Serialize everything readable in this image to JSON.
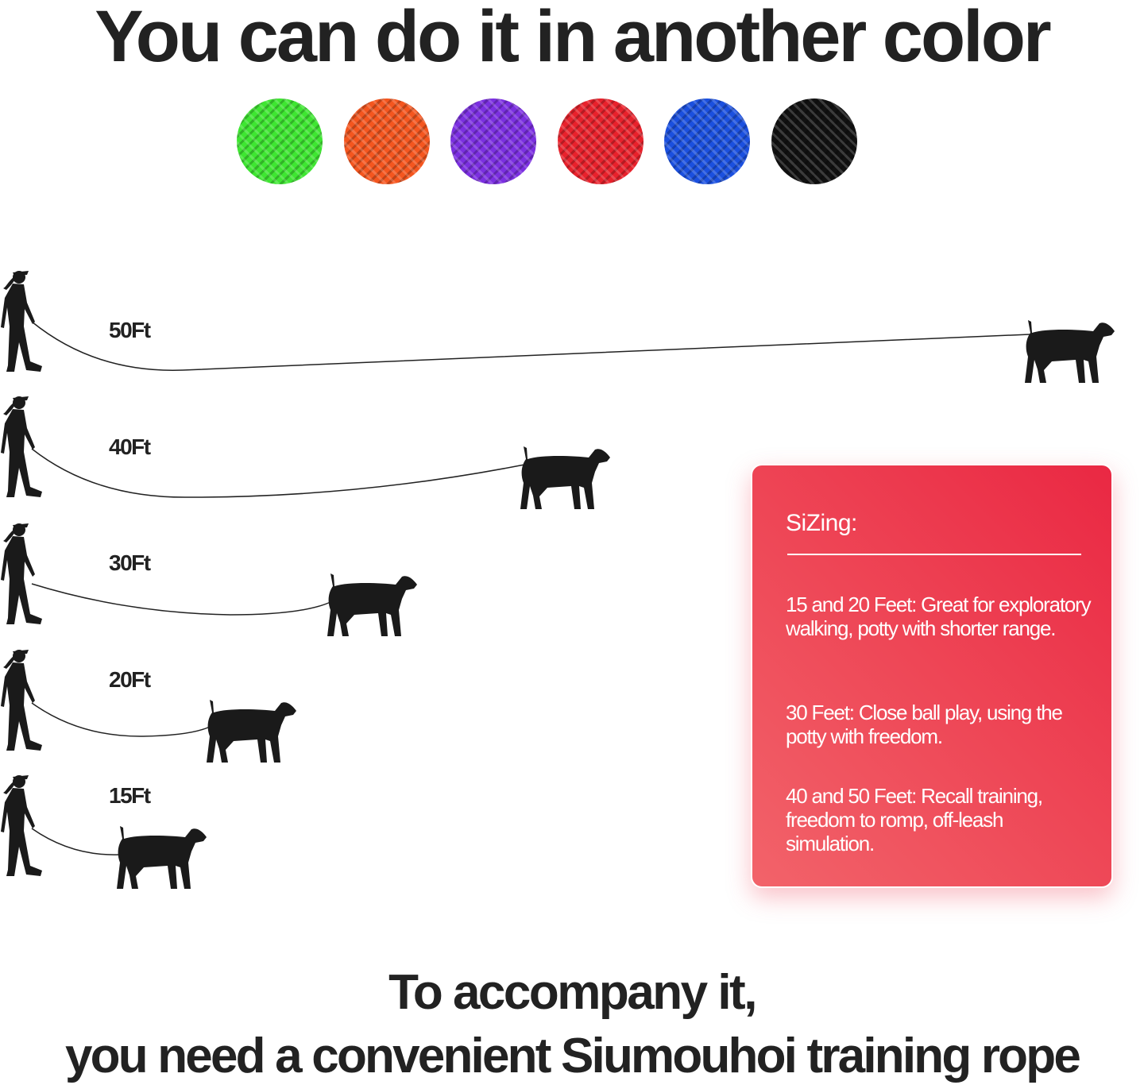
{
  "title": "You can do it in another color",
  "colors": [
    {
      "name": "green",
      "hex": "#3ee631"
    },
    {
      "name": "orange",
      "hex": "#f4561f"
    },
    {
      "name": "purple",
      "hex": "#7b2fe0"
    },
    {
      "name": "red",
      "hex": "#e8212b"
    },
    {
      "name": "blue",
      "hex": "#1b50df"
    },
    {
      "name": "black",
      "hex": "#111111"
    }
  ],
  "lengths": [
    "50Ft",
    "40Ft",
    "30Ft",
    "20Ft",
    "15Ft"
  ],
  "sizing": {
    "title": "SiZing:",
    "items": [
      "15 and 20 Feet: Great for exploratory walking, potty with shorter range.",
      "30 Feet: Close ball play, using the potty with freedom.",
      "40 and 50 Feet: Recall training, freedom to romp, off-leash simulation."
    ]
  },
  "footer": {
    "line1": "To accompany it,",
    "line2": "you need a convenient Siumouhoi training rope"
  }
}
